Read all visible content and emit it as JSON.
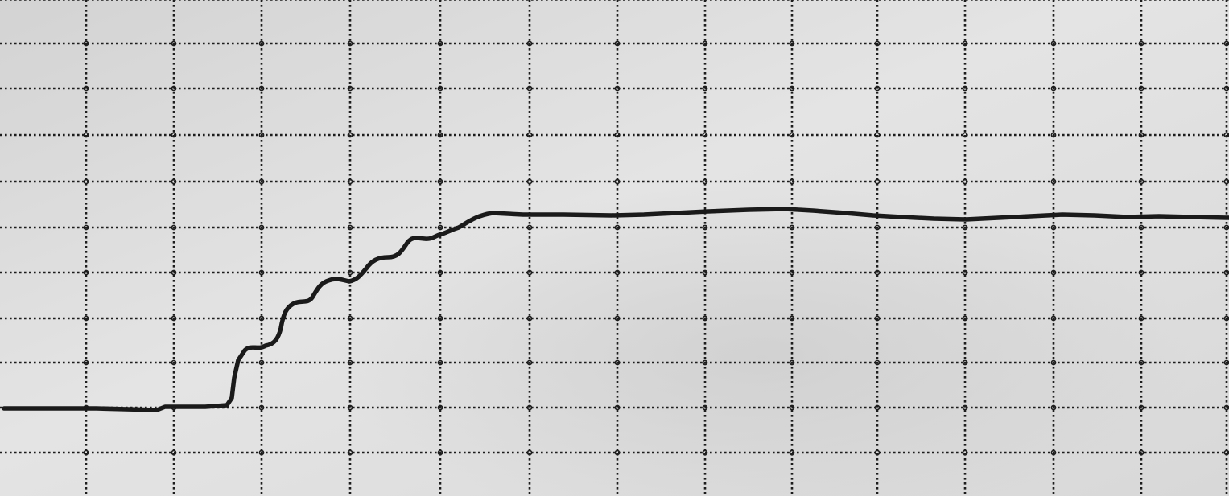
{
  "scene": {
    "subject": "chart-recorder-paper-trace",
    "colors": {
      "paper": "#dcdcdc",
      "paper_light": "#e8e8e8",
      "grid": "#1c1c1c",
      "trace": "#1a1a1a"
    }
  }
}
